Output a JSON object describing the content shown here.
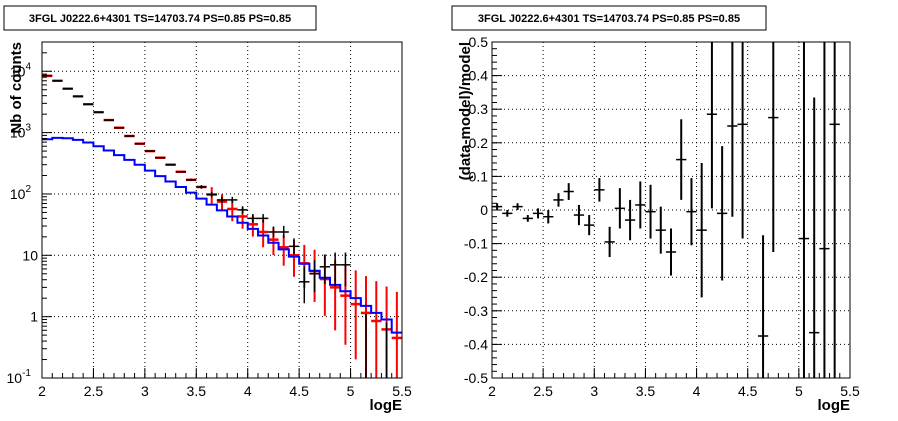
{
  "chart_data": [
    {
      "type": "histogram",
      "title": "3FGL J0222.6+4301 TS=14703.74 PS=0.85 PS=0.85",
      "xlabel": "logE",
      "ylabel": "Nb of counts",
      "xlim": [
        2,
        5.5
      ],
      "ylim": [
        0.1,
        30000
      ],
      "yscale": "log",
      "grid": true,
      "x_ticks": [
        "2",
        "2.5",
        "3",
        "3.5",
        "4",
        "4.5",
        "5",
        "5.5"
      ],
      "y_ticks": [
        {
          "value": 0.1,
          "label": "10",
          "exp": "-1"
        },
        {
          "value": 1,
          "label": "1",
          "exp": ""
        },
        {
          "value": 10,
          "label": "10",
          "exp": ""
        },
        {
          "value": 100,
          "label": "10",
          "exp": "2"
        },
        {
          "value": 1000,
          "label": "10",
          "exp": "3"
        },
        {
          "value": 10000,
          "label": "10",
          "exp": "4"
        }
      ],
      "bin_edges": [
        2.0,
        2.1,
        2.2,
        2.3,
        2.4,
        2.5,
        2.6,
        2.7,
        2.8,
        2.9,
        3.0,
        3.1,
        3.2,
        3.3,
        3.4,
        3.5,
        3.6,
        3.7,
        3.8,
        3.9,
        4.0,
        4.1,
        4.2,
        4.3,
        4.4,
        4.5,
        4.6,
        4.7,
        4.8,
        4.9,
        5.0,
        5.1,
        5.2,
        5.3,
        5.4,
        5.5
      ],
      "series": [
        {
          "style": "blue-step",
          "color": "#0000ff",
          "values": [
            780,
            820,
            810,
            760,
            690,
            600,
            510,
            430,
            360,
            300,
            240,
            195,
            160,
            130,
            105,
            84,
            67,
            54,
            43,
            34,
            27,
            21,
            16,
            12.5,
            9.5,
            7.3,
            5.6,
            4.3,
            3.3,
            2.6,
            2.0,
            1.5,
            1.15,
            0.9,
            0.55
          ]
        },
        {
          "style": "red-errorbar",
          "color": "#ff0000",
          "values": [
            8400,
            7000,
            5200,
            3900,
            2900,
            2150,
            1600,
            1200,
            880,
            660,
            500,
            390,
            300,
            230,
            170,
            130,
            98,
            75,
            57,
            43,
            32,
            24,
            18,
            13.5,
            10,
            7.4,
            5.5,
            4.1,
            3.0,
            2.2,
            1.6,
            1.15,
            0.85,
            0.62,
            0.45
          ],
          "err_lo": [
            null,
            null,
            null,
            null,
            null,
            null,
            null,
            null,
            null,
            null,
            null,
            null,
            null,
            null,
            null,
            null,
            0.15,
            0.15,
            0.2,
            0.2,
            0.2,
            0.25,
            0.25,
            0.3,
            0.35,
            0.4,
            0.5,
            0.6,
            0.7,
            0.8,
            0.9,
            null,
            null,
            null,
            null
          ],
          "err_hi": [
            null,
            null,
            null,
            null,
            null,
            null,
            null,
            null,
            null,
            null,
            null,
            null,
            null,
            null,
            null,
            null,
            0.12,
            0.12,
            0.15,
            0.15,
            0.15,
            0.2,
            0.2,
            0.2,
            0.25,
            0.3,
            0.35,
            0.4,
            0.45,
            0.5,
            0.55,
            0.6,
            0.65,
            0.7,
            0.75
          ]
        },
        {
          "style": "black-errorbar",
          "color": "#000000",
          "points": [
            [
              2.05,
              8500
            ],
            [
              2.15,
              7000
            ],
            [
              2.25,
              5200
            ],
            [
              2.35,
              3900
            ],
            [
              2.45,
              2900
            ],
            [
              2.55,
              2150
            ],
            [
              2.65,
              1600
            ],
            [
              2.75,
              1200
            ],
            [
              2.85,
              880
            ],
            [
              2.95,
              660
            ],
            [
              3.05,
              500
            ],
            [
              3.15,
              390
            ],
            [
              3.25,
              300
            ],
            [
              3.35,
              230
            ],
            [
              3.45,
              170
            ],
            [
              3.55,
              130
            ],
            [
              3.65,
              98
            ],
            [
              3.75,
              80
            ],
            [
              3.85,
              80
            ],
            [
              3.95,
              55
            ],
            [
              4.05,
              40
            ],
            [
              4.15,
              40
            ],
            [
              4.25,
              24
            ],
            [
              4.35,
              24
            ],
            [
              4.45,
              14
            ],
            [
              4.55,
              3.7
            ],
            [
              4.65,
              5
            ],
            [
              4.75,
              6.5
            ],
            [
              4.85,
              7
            ],
            [
              4.95,
              7
            ]
          ],
          "err_lo_dex": [
            0,
            0,
            0,
            0,
            0,
            0,
            0,
            0,
            0,
            0,
            0,
            0,
            0,
            0,
            0.02,
            0.03,
            0.04,
            0.05,
            0.05,
            0.06,
            0.07,
            0.07,
            0.09,
            0.1,
            0.13,
            0.35,
            0.3,
            0.28,
            0.35,
            0.35
          ],
          "err_hi_dex": [
            0,
            0,
            0,
            0,
            0,
            0,
            0,
            0,
            0,
            0,
            0,
            0,
            0,
            0,
            0.02,
            0.03,
            0.04,
            0.05,
            0.05,
            0.06,
            0.07,
            0.07,
            0.09,
            0.1,
            0.13,
            0.25,
            0.22,
            0.2,
            0.2,
            0.2
          ]
        }
      ],
      "extra_black_errorbars": [
        {
          "x": 5.15,
          "lo": 0.1,
          "hi": 1.1
        },
        {
          "x": 5.35,
          "lo": 0.1,
          "hi": 0.8
        }
      ]
    },
    {
      "type": "scatter",
      "title": "3FGL J0222.6+4301 TS=14703.74 PS=0.85 PS=0.85",
      "xlabel": "logE",
      "ylabel": "(data-model)/model",
      "xlim": [
        2,
        5.5
      ],
      "ylim": [
        -0.5,
        0.5
      ],
      "grid": true,
      "x_ticks": [
        "2",
        "2.5",
        "3",
        "3.5",
        "4",
        "4.5",
        "5",
        "5.5"
      ],
      "y_ticks": [
        "-0.5",
        "-0.4",
        "-0.3",
        "-0.2",
        "-0.1",
        "0",
        "0.1",
        "0.2",
        "0.3",
        "0.4",
        "0.5"
      ],
      "points": [
        {
          "x": 2.05,
          "y": 0.01,
          "lo": 0.01,
          "hi": 0.01
        },
        {
          "x": 2.15,
          "y": -0.01,
          "lo": 0.01,
          "hi": 0.01
        },
        {
          "x": 2.25,
          "y": 0.01,
          "lo": 0.01,
          "hi": 0.01
        },
        {
          "x": 2.35,
          "y": -0.025,
          "lo": 0.01,
          "hi": 0.01
        },
        {
          "x": 2.45,
          "y": -0.01,
          "lo": 0.015,
          "hi": 0.015
        },
        {
          "x": 2.55,
          "y": -0.02,
          "lo": 0.02,
          "hi": 0.02
        },
        {
          "x": 2.65,
          "y": 0.03,
          "lo": 0.02,
          "hi": 0.02
        },
        {
          "x": 2.75,
          "y": 0.055,
          "lo": 0.025,
          "hi": 0.025
        },
        {
          "x": 2.85,
          "y": -0.015,
          "lo": 0.03,
          "hi": 0.03
        },
        {
          "x": 2.95,
          "y": -0.045,
          "lo": 0.03,
          "hi": 0.03
        },
        {
          "x": 3.05,
          "y": 0.06,
          "lo": 0.035,
          "hi": 0.035
        },
        {
          "x": 3.15,
          "y": -0.095,
          "lo": 0.045,
          "hi": 0.045
        },
        {
          "x": 3.25,
          "y": 0.005,
          "lo": 0.06,
          "hi": 0.06
        },
        {
          "x": 3.35,
          "y": -0.03,
          "lo": 0.06,
          "hi": 0.06
        },
        {
          "x": 3.45,
          "y": 0.015,
          "lo": 0.07,
          "hi": 0.07
        },
        {
          "x": 3.55,
          "y": -0.005,
          "lo": 0.08,
          "hi": 0.08
        },
        {
          "x": 3.65,
          "y": -0.06,
          "lo": 0.07,
          "hi": 0.07
        },
        {
          "x": 3.75,
          "y": -0.125,
          "lo": 0.07,
          "hi": 0.07
        },
        {
          "x": 3.85,
          "y": 0.15,
          "lo": 0.12,
          "hi": 0.12
        },
        {
          "x": 3.95,
          "y": -0.005,
          "lo": 0.1,
          "hi": 0.1
        },
        {
          "x": 4.05,
          "y": -0.06,
          "lo": 0.2,
          "hi": 0.2
        },
        {
          "x": 4.15,
          "y": 0.285,
          "lo": 0.28,
          "hi": 0.28
        },
        {
          "x": 4.25,
          "y": -0.01,
          "lo": 0.2,
          "hi": 0.2
        },
        {
          "x": 4.35,
          "y": 0.25,
          "lo": 0.27,
          "hi": 0.27
        },
        {
          "x": 4.45,
          "y": 0.255,
          "lo": 0.34,
          "hi": 0.34
        },
        {
          "x": 4.65,
          "y": -0.375,
          "lo": 0.3,
          "hi": 0.3
        },
        {
          "x": 4.75,
          "y": 0.275,
          "lo": 0.4,
          "hi": 0.4
        },
        {
          "x": 5.05,
          "y": -0.085,
          "lo": 0.7,
          "hi": 0.7
        },
        {
          "x": 5.15,
          "y": -0.365,
          "lo": 0.7,
          "hi": 0.7
        },
        {
          "x": 5.25,
          "y": -0.115,
          "lo": 0.7,
          "hi": 0.7
        },
        {
          "x": 5.35,
          "y": 0.255,
          "lo": 0.9,
          "hi": 0.9
        }
      ]
    }
  ]
}
